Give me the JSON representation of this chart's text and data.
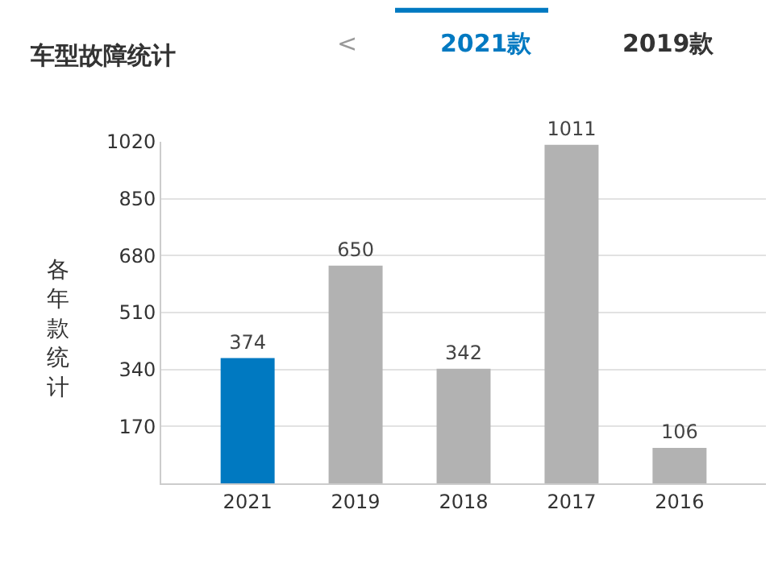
{
  "chart_data": {
    "type": "bar",
    "title": "车型故障统计",
    "annotations": [
      "<",
      "2021款",
      "2019款"
    ],
    "ylabel": "各年款统计",
    "categories": [
      "2021",
      "2019",
      "2018",
      "2017",
      "2016"
    ],
    "values": [
      374,
      650,
      342,
      1011,
      106
    ],
    "colors": [
      "#0079c1",
      "#b2b2b2",
      "#b2b2b2",
      "#b2b2b2",
      "#b2b2b2"
    ],
    "ylim": [
      0,
      1020
    ],
    "yticks": [
      {
        "value": 0,
        "label": null
      },
      170,
      340,
      510,
      680,
      850,
      1020
    ],
    "grid": "y",
    "data_labels": true
  }
}
